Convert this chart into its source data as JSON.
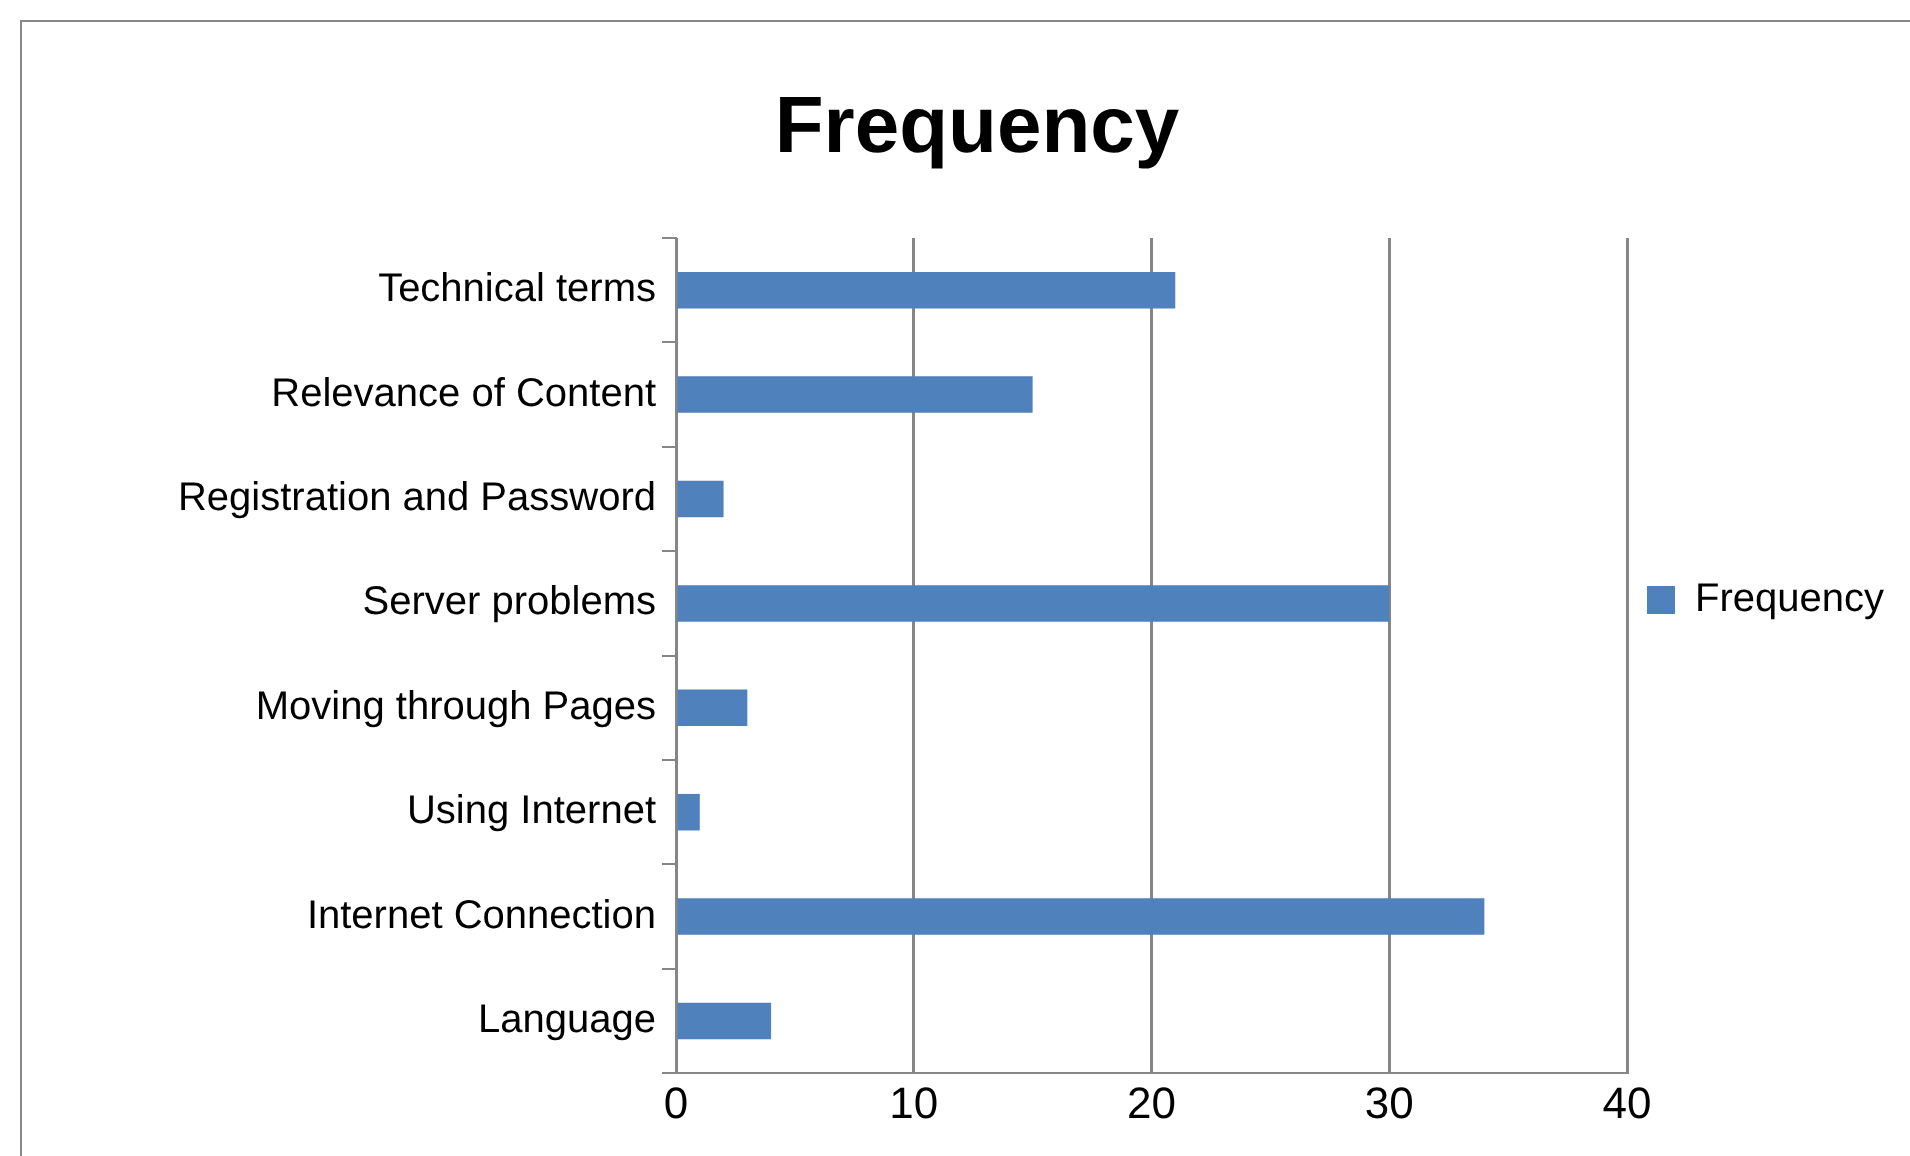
{
  "chart_data": {
    "type": "bar",
    "orientation": "horizontal",
    "title": "Frequency",
    "categories": [
      "Technical terms",
      "Relevance of Content",
      "Registration and Password",
      "Server problems",
      "Moving through Pages",
      "Using Internet",
      "Internet Connection",
      "Language"
    ],
    "series": [
      {
        "name": "Frequency",
        "color": "#4f81bd",
        "values": [
          21,
          15,
          2,
          30,
          3,
          1,
          34,
          4
        ]
      }
    ],
    "xlim": [
      0,
      40
    ],
    "xticks": [
      0,
      10,
      20,
      30,
      40
    ],
    "grid": "x",
    "legend": "right"
  }
}
